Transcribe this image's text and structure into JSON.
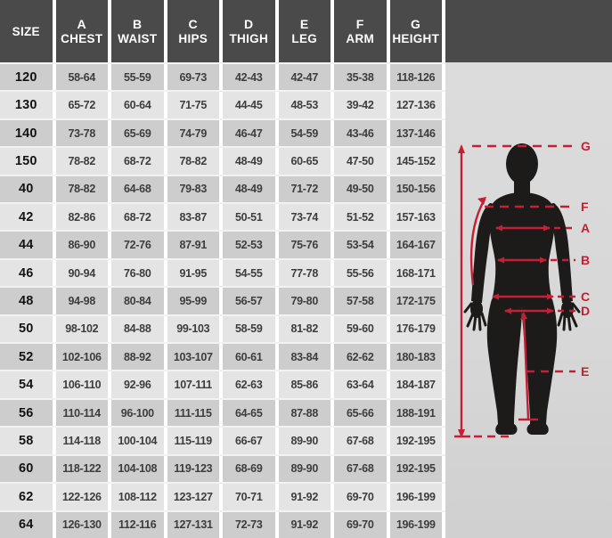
{
  "colors": {
    "header_bg": "#4a4a4b",
    "row_dark": "#cdcdcd",
    "row_light": "#e4e4e4",
    "accent_red": "#c42035",
    "silhouette": "#1c1b1a",
    "figure_bg": "#d9d9d9"
  },
  "chart_data": {
    "type": "table",
    "title": "Size chart with body measurement diagram (cm)",
    "columns": [
      {
        "letter": "",
        "label": "SIZE"
      },
      {
        "letter": "A",
        "label": "CHEST"
      },
      {
        "letter": "B",
        "label": "WAIST"
      },
      {
        "letter": "C",
        "label": "HIPS"
      },
      {
        "letter": "D",
        "label": "THIGH"
      },
      {
        "letter": "E",
        "label": "LEG"
      },
      {
        "letter": "F",
        "label": "ARM"
      },
      {
        "letter": "G",
        "label": "HEIGHT"
      }
    ],
    "rows": [
      {
        "size": "120",
        "values": [
          "58-64",
          "55-59",
          "69-73",
          "42-43",
          "42-47",
          "35-38",
          "118-126"
        ]
      },
      {
        "size": "130",
        "values": [
          "65-72",
          "60-64",
          "71-75",
          "44-45",
          "48-53",
          "39-42",
          "127-136"
        ]
      },
      {
        "size": "140",
        "values": [
          "73-78",
          "65-69",
          "74-79",
          "46-47",
          "54-59",
          "43-46",
          "137-146"
        ]
      },
      {
        "size": "150",
        "values": [
          "78-82",
          "68-72",
          "78-82",
          "48-49",
          "60-65",
          "47-50",
          "145-152"
        ]
      },
      {
        "size": "40",
        "values": [
          "78-82",
          "64-68",
          "79-83",
          "48-49",
          "71-72",
          "49-50",
          "150-156"
        ]
      },
      {
        "size": "42",
        "values": [
          "82-86",
          "68-72",
          "83-87",
          "50-51",
          "73-74",
          "51-52",
          "157-163"
        ]
      },
      {
        "size": "44",
        "values": [
          "86-90",
          "72-76",
          "87-91",
          "52-53",
          "75-76",
          "53-54",
          "164-167"
        ]
      },
      {
        "size": "46",
        "values": [
          "90-94",
          "76-80",
          "91-95",
          "54-55",
          "77-78",
          "55-56",
          "168-171"
        ]
      },
      {
        "size": "48",
        "values": [
          "94-98",
          "80-84",
          "95-99",
          "56-57",
          "79-80",
          "57-58",
          "172-175"
        ]
      },
      {
        "size": "50",
        "values": [
          "98-102",
          "84-88",
          "99-103",
          "58-59",
          "81-82",
          "59-60",
          "176-179"
        ]
      },
      {
        "size": "52",
        "values": [
          "102-106",
          "88-92",
          "103-107",
          "60-61",
          "83-84",
          "62-62",
          "180-183"
        ]
      },
      {
        "size": "54",
        "values": [
          "106-110",
          "92-96",
          "107-111",
          "62-63",
          "85-86",
          "63-64",
          "184-187"
        ]
      },
      {
        "size": "56",
        "values": [
          "110-114",
          "96-100",
          "111-115",
          "64-65",
          "87-88",
          "65-66",
          "188-191"
        ]
      },
      {
        "size": "58",
        "values": [
          "114-118",
          "100-104",
          "115-119",
          "66-67",
          "89-90",
          "67-68",
          "192-195"
        ]
      },
      {
        "size": "60",
        "values": [
          "118-122",
          "104-108",
          "119-123",
          "68-69",
          "89-90",
          "67-68",
          "192-195"
        ]
      },
      {
        "size": "62",
        "values": [
          "122-126",
          "108-112",
          "123-127",
          "70-71",
          "91-92",
          "69-70",
          "196-199"
        ]
      },
      {
        "size": "64",
        "values": [
          "126-130",
          "112-116",
          "127-131",
          "72-73",
          "91-92",
          "69-70",
          "196-199"
        ]
      }
    ],
    "figure_labels": [
      "G",
      "F",
      "A",
      "B",
      "C",
      "D",
      "E"
    ]
  }
}
